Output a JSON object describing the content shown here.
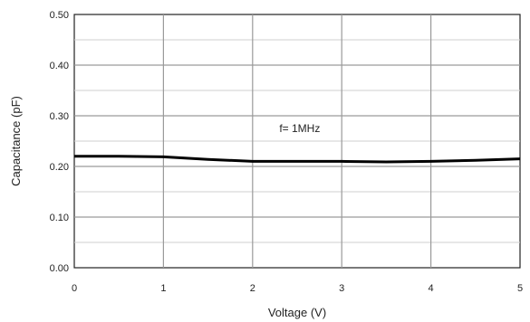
{
  "chart_data": {
    "type": "line",
    "title": "",
    "xlabel": "Voltage (V)",
    "ylabel": "Capacitance (pF)",
    "xlim": [
      0,
      5
    ],
    "ylim": [
      0,
      0.5
    ],
    "x_ticks": [
      0,
      1,
      2,
      3,
      4,
      5
    ],
    "x_tick_labels": [
      "0",
      "1",
      "2",
      "3",
      "4",
      "5"
    ],
    "y_ticks": [
      0,
      0.1,
      0.2,
      0.3,
      0.4,
      0.5
    ],
    "y_tick_labels": [
      "0.00",
      "0.10",
      "0.20",
      "0.30",
      "0.40",
      "0.50"
    ],
    "grid": true,
    "series": [
      {
        "x": [
          0,
          0.5,
          1,
          1.5,
          2,
          2.5,
          3,
          3.5,
          4,
          4.5,
          5
        ],
        "y": [
          0.22,
          0.22,
          0.219,
          0.214,
          0.21,
          0.21,
          0.21,
          0.209,
          0.21,
          0.212,
          0.215
        ],
        "color": "#000000"
      }
    ],
    "annotation": {
      "text": "f= 1MHz",
      "x": 2.3,
      "y": 0.268
    }
  }
}
